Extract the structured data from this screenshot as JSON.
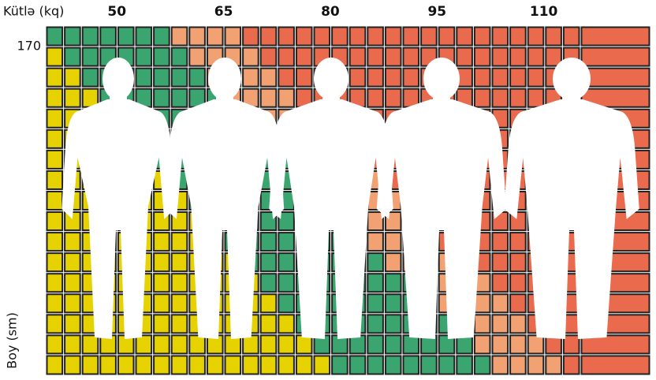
{
  "chart_data": {
    "type": "heatmap",
    "xlabel": "Kütlə (kq)",
    "ylabel": "Boy (sm)",
    "xlim": [
      40,
      125
    ],
    "xticks": [
      50,
      65,
      80,
      95,
      110
    ],
    "ylim": [
      154,
      171
    ],
    "yticks": [
      170
    ],
    "colors": [
      "#e6d200",
      "#3aa56f",
      "#f2a172",
      "#ea6a4e"
    ]
  }
}
